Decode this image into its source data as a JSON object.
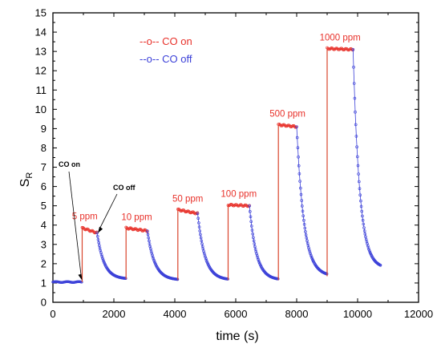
{
  "chart_data": {
    "type": "line",
    "title": "",
    "xlabel": "time (s)",
    "ylabel": "S",
    "ylabel_subscript": "R",
    "xlim": [
      0,
      12000
    ],
    "ylim": [
      0,
      15
    ],
    "xticks": [
      "0",
      "2000",
      "4000",
      "6000",
      "8000",
      "10000",
      "12000"
    ],
    "yticks": [
      "0",
      "1",
      "2",
      "3",
      "4",
      "5",
      "6",
      "7",
      "8",
      "9",
      "10",
      "11",
      "12",
      "13",
      "14",
      "15"
    ],
    "grid": false,
    "legend": {
      "placement": "top-left",
      "entries": [
        {
          "label": "--o-- CO on",
          "color": "#e8312a"
        },
        {
          "label": "--o-- CO off",
          "color": "#3a3fd8"
        }
      ]
    },
    "baseline": 1.05,
    "pulses": [
      {
        "label": "5 ppm",
        "on": 960,
        "off": 1450,
        "end": 2400,
        "plateau_start": 3.85,
        "plateau_end": 3.6,
        "recovered": 1.2
      },
      {
        "label": "10 ppm",
        "on": 2400,
        "off": 3100,
        "end": 4100,
        "plateau_start": 3.85,
        "plateau_end": 3.7,
        "recovered": 1.15
      },
      {
        "label": "50 ppm",
        "on": 4100,
        "off": 4750,
        "end": 5750,
        "plateau_start": 4.8,
        "plateau_end": 4.6,
        "recovered": 1.15
      },
      {
        "label": "100 ppm",
        "on": 5750,
        "off": 6450,
        "end": 7400,
        "plateau_start": 5.05,
        "plateau_end": 5.0,
        "recovered": 1.15
      },
      {
        "label": "500 ppm",
        "on": 7400,
        "off": 8000,
        "end": 9000,
        "plateau_start": 9.2,
        "plateau_end": 9.1,
        "recovered": 1.35
      },
      {
        "label": "1000 ppm",
        "on": 9000,
        "off": 9850,
        "end": 10750,
        "plateau_start": 13.15,
        "plateau_end": 13.1,
        "recovered": 1.75
      }
    ],
    "annotations": [
      {
        "text": "CO on",
        "x": 960,
        "y": 1.05
      },
      {
        "text": "CO off",
        "x": 1450,
        "y": 3.55
      }
    ],
    "colors": {
      "on": "#e8312a",
      "off": "#3a3fd8",
      "step": "#d9452c"
    }
  }
}
